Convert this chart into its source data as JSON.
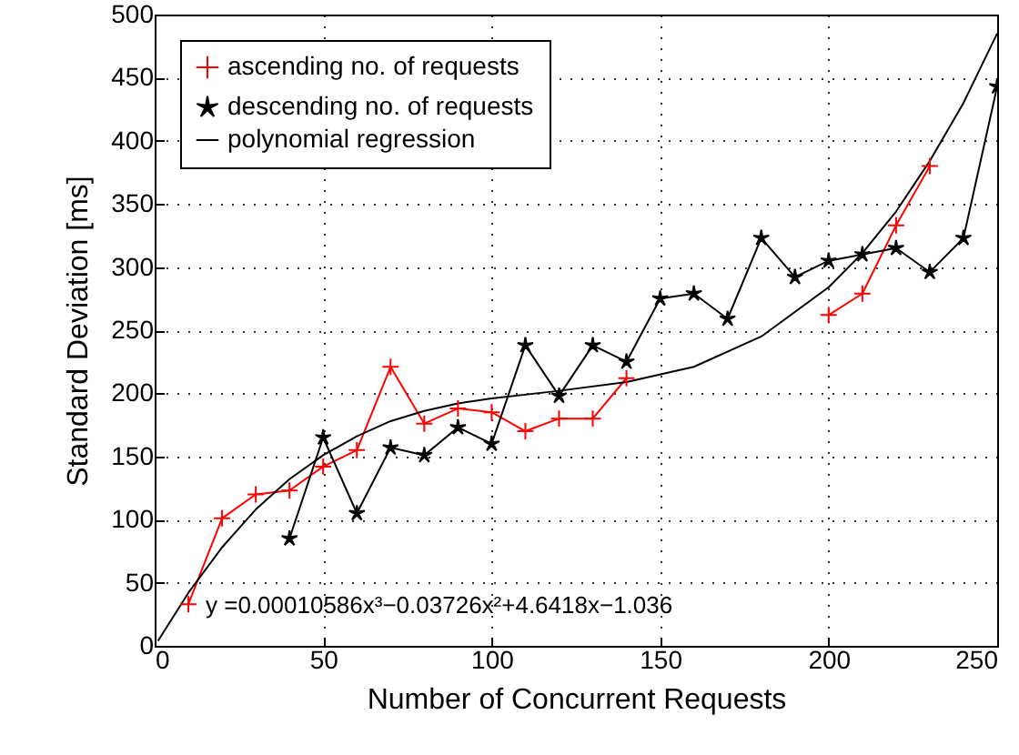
{
  "chart_data": {
    "type": "line",
    "xlabel": "Number of Concurrent Requests",
    "ylabel": "Standard Deviation [ms]",
    "xlim": [
      0,
      250
    ],
    "ylim": [
      0,
      500
    ],
    "xticks": [
      0,
      50,
      100,
      150,
      200,
      250
    ],
    "yticks": [
      0,
      50,
      100,
      150,
      200,
      250,
      300,
      350,
      400,
      450,
      500
    ],
    "grid": true,
    "legend": "top left",
    "line_style": "solid",
    "annotations": [
      "y =0.00010586x³−0.03726x²+4.6418x−1.036"
    ],
    "series": [
      {
        "name": "ascending no. of requests",
        "color": "#ff0000",
        "marker": "cross",
        "x": [
          10,
          20,
          30,
          40,
          50,
          60,
          70,
          80,
          90,
          100,
          110,
          120,
          130,
          140,
          150,
          160,
          170,
          180,
          190,
          200,
          210,
          220,
          230
        ],
        "values": [
          33,
          101,
          120,
          123,
          142,
          155,
          221,
          176,
          188,
          185,
          170,
          180,
          180,
          212,
          null,
          null,
          null,
          null,
          null,
          262,
          279,
          333,
          380
        ]
      },
      {
        "name": "descending no. of requests",
        "color": "#000000",
        "marker": "star",
        "x": [
          40,
          50,
          60,
          70,
          80,
          90,
          100,
          110,
          120,
          130,
          140,
          150,
          160,
          170,
          180,
          190,
          200,
          210,
          220,
          230,
          240,
          250
        ],
        "values": [
          85,
          165,
          105,
          157,
          151,
          173,
          160,
          238,
          198,
          238,
          225,
          275,
          279,
          259,
          323,
          292,
          305,
          310,
          315,
          296,
          323,
          443
        ]
      },
      {
        "name": "polynomial regression",
        "color": "#000000",
        "marker": "none",
        "x": [
          1,
          10,
          20,
          30,
          40,
          50,
          60,
          70,
          80,
          90,
          100,
          120,
          140,
          160,
          180,
          200,
          210,
          220,
          230,
          240,
          250
        ],
        "values": [
          4,
          42,
          78,
          108,
          132,
          151,
          166,
          178,
          186,
          192,
          196,
          202,
          209,
          221,
          245,
          284,
          311,
          344,
          384,
          430,
          485
        ]
      }
    ]
  }
}
